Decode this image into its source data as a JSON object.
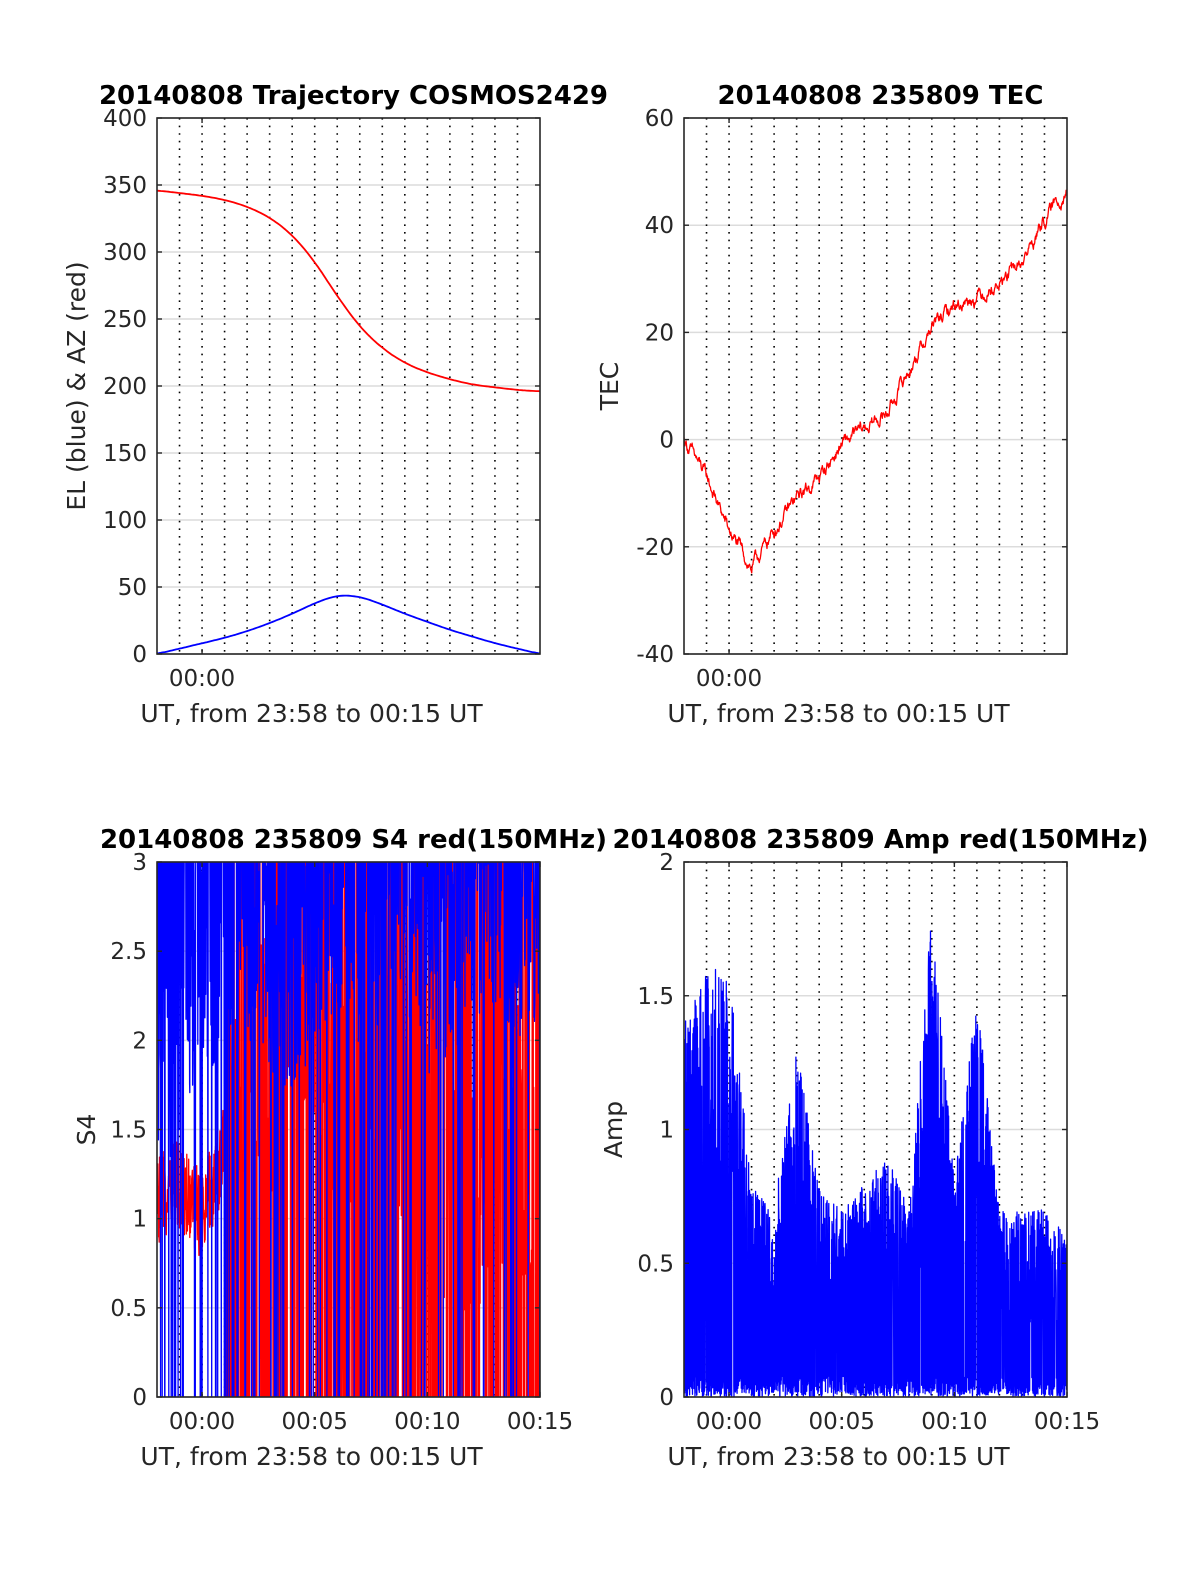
{
  "figure": {
    "background": "#ffffff"
  },
  "chart_data": [
    {
      "id": "traj",
      "type": "line",
      "title": "20140808 Trajectory COSMOS2429",
      "xlabel": "UT, from 23:58 to 00:15 UT",
      "ylabel": "EL (blue) & AZ (red)",
      "xlim": [
        "23:58",
        "00:15"
      ],
      "ylim": [
        0,
        400
      ],
      "yticks": [
        0,
        50,
        100,
        150,
        200,
        250,
        300,
        350,
        400
      ],
      "ytick_labels": [
        "0",
        "50",
        "100",
        "150",
        "200",
        "250",
        "300",
        "350",
        "400"
      ],
      "xticks": [
        "00:00"
      ],
      "xtick_labels": [
        "00:00"
      ],
      "grid": true,
      "series": [
        {
          "color": "#ff0000",
          "x": [
            "23:58",
            "23:59",
            "00:00",
            "00:01",
            "00:02",
            "00:03",
            "00:04",
            "00:05",
            "00:06",
            "00:07",
            "00:08",
            "00:09",
            "00:10",
            "00:11",
            "00:12",
            "00:13",
            "00:14",
            "00:15"
          ],
          "values": [
            346,
            344,
            342,
            339,
            334,
            326,
            313,
            293,
            267,
            244,
            228,
            217,
            210,
            205,
            201,
            199,
            197,
            196
          ]
        },
        {
          "color": "#0000ff",
          "x": [
            "23:58",
            "23:59",
            "00:00",
            "00:01",
            "00:02",
            "00:03",
            "00:04",
            "00:05",
            "00:06",
            "00:07",
            "00:08",
            "00:09",
            "00:10",
            "00:11",
            "00:12",
            "00:13",
            "00:14",
            "00:15"
          ],
          "values": [
            0,
            4,
            8,
            12,
            17,
            23,
            30,
            38,
            44,
            43,
            37,
            30,
            24,
            18,
            13,
            8,
            4,
            0
          ]
        }
      ]
    },
    {
      "id": "tec",
      "type": "line",
      "title": "20140808 235809 TEC",
      "xlabel": "UT, from 23:58 to 00:15 UT",
      "ylabel": "TEC",
      "xlim": [
        "23:58",
        "00:15"
      ],
      "ylim": [
        -40,
        60
      ],
      "yticks": [
        -40,
        -20,
        0,
        20,
        40,
        60
      ],
      "ytick_labels": [
        "-40",
        "-20",
        "0",
        "20",
        "40",
        "60"
      ],
      "xticks": [
        "00:00"
      ],
      "xtick_labels": [
        "00:00"
      ],
      "grid": true,
      "series": [
        {
          "color": "#ff0000",
          "x": [
            "23:58",
            "23:59",
            "00:00",
            "00:01",
            "00:02",
            "00:03",
            "00:04",
            "00:05",
            "00:06",
            "00:07",
            "00:08",
            "00:09",
            "00:10",
            "00:11",
            "00:12",
            "00:13",
            "00:14",
            "00:15"
          ],
          "values": [
            0,
            -7,
            -17,
            -24,
            -17,
            -11,
            -7,
            -1,
            2,
            5,
            13,
            21,
            25,
            27,
            29,
            33,
            41,
            47
          ]
        }
      ]
    },
    {
      "id": "s4",
      "type": "line",
      "title": "20140808 235809 S4 red(150MHz)",
      "xlabel": "UT, from 23:58 to 00:15 UT",
      "ylabel": "S4",
      "xlim": [
        "23:58",
        "00:15"
      ],
      "ylim": [
        0,
        3
      ],
      "yticks": [
        0,
        0.5,
        1,
        1.5,
        2,
        2.5,
        3
      ],
      "ytick_labels": [
        "0",
        "0.5",
        "1",
        "1.5",
        "2",
        "2.5",
        "3"
      ],
      "xticks": [
        "00:00",
        "00:05",
        "00:10",
        "00:15"
      ],
      "xtick_labels": [
        "00:00",
        "00:05",
        "00:10",
        "00:15"
      ],
      "grid": true,
      "series": [
        {
          "color": "#ff0000",
          "x": [
            "23:58",
            "23:59",
            "00:00",
            "00:01",
            "00:02",
            "00:03",
            "00:04",
            "00:05",
            "00:06",
            "00:07",
            "00:08",
            "00:09",
            "00:10",
            "00:11",
            "00:12",
            "00:13",
            "00:14",
            "00:15"
          ],
          "values": [
            1.1,
            1.2,
            1.0,
            1.4,
            2.0,
            1.8,
            2.5,
            2.3,
            1.5,
            1.2,
            1.5,
            1.6,
            1.4,
            1.3,
            1.2,
            1.5,
            1.4,
            1.6
          ]
        },
        {
          "color": "#0000ff",
          "x": [
            "23:58",
            "23:59",
            "00:00",
            "00:01",
            "00:02",
            "00:03",
            "00:04",
            "00:05",
            "00:06",
            "00:07",
            "00:08",
            "00:09",
            "00:10",
            "00:11",
            "00:12",
            "00:13",
            "00:14",
            "00:15"
          ],
          "values": [
            1.8,
            2.2,
            2.5,
            2.6,
            2.7,
            2.5,
            2.4,
            2.6,
            2.8,
            2.6,
            2.7,
            2.8,
            2.5,
            2.6,
            2.8,
            2.9,
            2.7,
            2.8
          ]
        }
      ]
    },
    {
      "id": "amp",
      "type": "line",
      "title": "20140808 235809 Amp red(150MHz)",
      "xlabel": "UT, from 23:58 to 00:15 UT",
      "ylabel": "Amp",
      "xlim": [
        "23:58",
        "00:15"
      ],
      "ylim": [
        0,
        2
      ],
      "yticks": [
        0,
        0.5,
        1,
        1.5,
        2
      ],
      "ytick_labels": [
        "0",
        "0.5",
        "1",
        "1.5",
        "2"
      ],
      "xticks": [
        "00:00",
        "00:05",
        "00:10",
        "00:15"
      ],
      "xtick_labels": [
        "00:00",
        "00:05",
        "00:10",
        "00:15"
      ],
      "grid": true,
      "series": [
        {
          "color": "#0000ff",
          "x": [
            "23:58",
            "23:59",
            "00:00",
            "00:01",
            "00:02",
            "00:03",
            "00:04",
            "00:05",
            "00:06",
            "00:07",
            "00:08",
            "00:09",
            "00:10",
            "00:11",
            "00:12",
            "00:13",
            "00:14",
            "00:15"
          ],
          "values": [
            1.4,
            1.6,
            1.6,
            0.8,
            0.7,
            1.3,
            0.8,
            0.7,
            0.8,
            0.9,
            0.7,
            1.85,
            0.8,
            1.5,
            0.7,
            0.7,
            0.7,
            0.6
          ]
        }
      ]
    }
  ]
}
